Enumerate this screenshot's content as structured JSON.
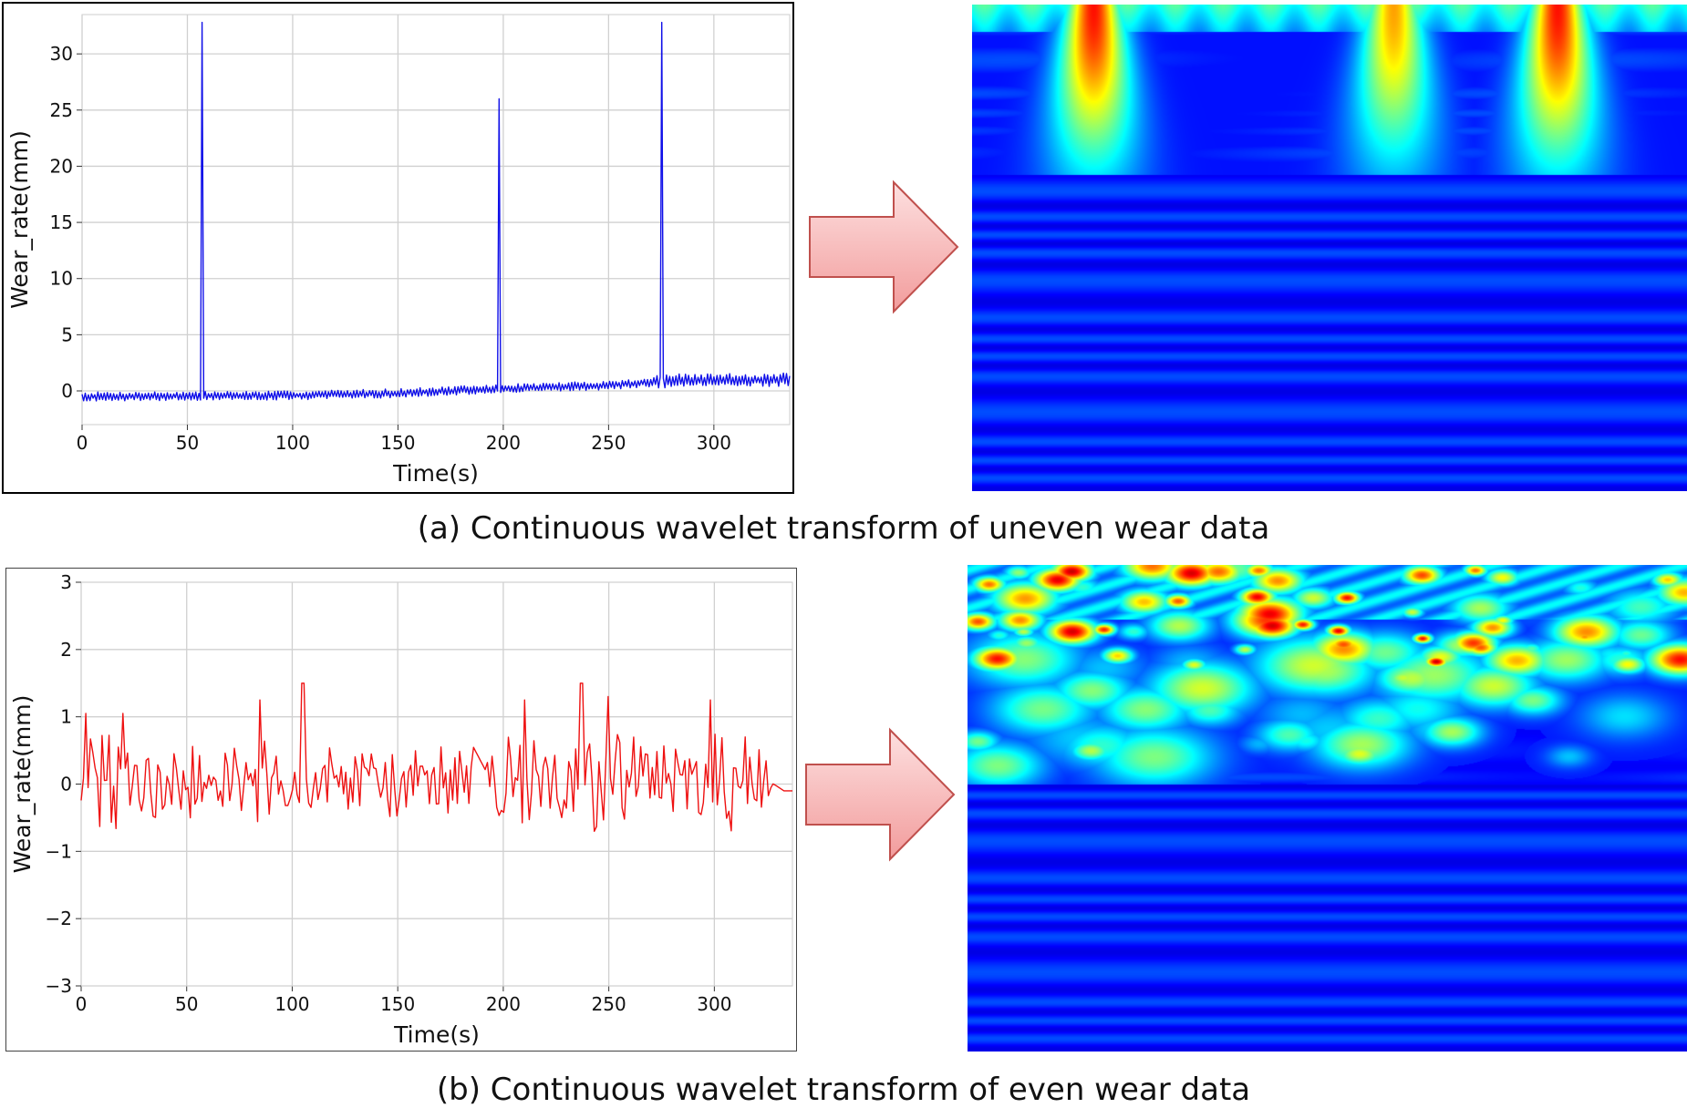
{
  "chart_data": [
    {
      "type": "line",
      "id": "a",
      "title": "",
      "xlabel": "Time(s)",
      "ylabel": "Wear_rate(mm)",
      "xlim": [
        0,
        336
      ],
      "ylim": [
        -3,
        33.5
      ],
      "xticks": [
        0,
        50,
        100,
        150,
        200,
        250,
        300
      ],
      "yticks": [
        0,
        5,
        10,
        15,
        20,
        25,
        30
      ],
      "grid": true,
      "color": "#1010e8",
      "series": [
        {
          "baseline": [
            [
              0,
              -0.5
            ],
            [
              100,
              -0.4
            ],
            [
              150,
              -0.2
            ],
            [
              200,
              0.2
            ],
            [
              250,
              0.5
            ],
            [
              280,
              0.9
            ],
            [
              336,
              1.0
            ]
          ],
          "oscillation_amplitude": 0.5,
          "spikes": [
            [
              57,
              32.8
            ],
            [
              198,
              26.0
            ],
            [
              275,
              32.8
            ]
          ]
        }
      ]
    },
    {
      "type": "line",
      "id": "b",
      "title": "",
      "xlabel": "Time(s)",
      "ylabel": "Wear_rate(mm)",
      "xlim": [
        0,
        337
      ],
      "ylim": [
        -3,
        3
      ],
      "xticks": [
        0,
        50,
        100,
        150,
        200,
        250,
        300
      ],
      "yticks": [
        -3,
        -2,
        -1,
        0,
        1,
        2,
        3
      ],
      "grid": true,
      "color": "#ee1111",
      "series": [
        {
          "range": [
            0,
            337
          ],
          "amplitude_low": 0.65,
          "amplitude_high": 0.9,
          "peaks": [
            [
              2,
              1.05
            ],
            [
              20,
              1.05
            ],
            [
              85,
              1.25
            ],
            [
              105,
              1.5
            ],
            [
              210,
              1.25
            ],
            [
              237,
              1.5
            ],
            [
              250,
              1.3
            ],
            [
              298,
              1.25
            ],
            [
              330,
              -0.1
            ]
          ]
        }
      ]
    },
    {
      "type": "heatmap",
      "id": "a-cwt",
      "colormap": "jet",
      "hotspots": [
        [
          57,
          "strong"
        ],
        [
          198,
          "medium"
        ],
        [
          275,
          "strong"
        ]
      ]
    },
    {
      "type": "heatmap",
      "id": "b-cwt",
      "colormap": "jet",
      "hotspots": []
    }
  ],
  "captions": {
    "a": "(a) Continuous wavelet transform of uneven wear data",
    "b": "(b) Continuous wavelet transform of even wear data"
  },
  "arrow_color": "#f7b3b3"
}
